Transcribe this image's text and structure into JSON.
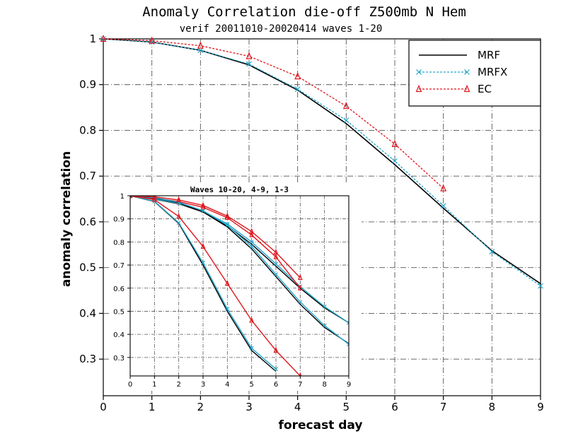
{
  "chart_data": [
    {
      "type": "line",
      "title": "Anomaly Correlation die-off   Z500mb N Hem",
      "subtitle": "verif 20011010-20020414 waves 1-20",
      "xlabel": "forecast day",
      "ylabel": "anomaly correlation",
      "xlim": [
        0,
        9
      ],
      "ylim": [
        0.22,
        1.0
      ],
      "xticks": [
        "0",
        "1",
        "2",
        "3",
        "4",
        "5",
        "6",
        "7",
        "8",
        "9"
      ],
      "yticks": [
        "0.3",
        "0.4",
        "0.5",
        "0.6",
        "0.7",
        "0.8",
        "0.9",
        "1"
      ],
      "grid": true,
      "legend_position": "top-right",
      "series": [
        {
          "name": "MRF",
          "color": "#000000",
          "x": [
            0,
            1,
            2,
            3,
            4,
            5,
            6,
            7,
            8,
            9
          ],
          "y": [
            1.0,
            0.993,
            0.975,
            0.943,
            0.888,
            0.815,
            0.725,
            0.63,
            0.537,
            0.465
          ]
        },
        {
          "name": "MRFX",
          "color": "#22a7cc",
          "x": [
            0,
            1,
            2,
            3,
            4,
            5,
            6,
            7,
            8,
            9
          ],
          "y": [
            1.0,
            0.993,
            0.975,
            0.945,
            0.89,
            0.822,
            0.733,
            0.635,
            0.535,
            0.46
          ]
        },
        {
          "name": "EC",
          "color": "#e0161d",
          "x": [
            0,
            1,
            2,
            3,
            4,
            5,
            6,
            7
          ],
          "y": [
            1.0,
            0.996,
            0.985,
            0.962,
            0.918,
            0.853,
            0.77,
            0.673
          ]
        }
      ]
    },
    {
      "type": "line",
      "title": "Waves 10-20, 4-9, 1-3",
      "xlim": [
        0,
        9
      ],
      "ylim": [
        0.22,
        1.0
      ],
      "xticks": [
        "0",
        "1",
        "2",
        "3",
        "4",
        "5",
        "6",
        "7",
        "8",
        "9"
      ],
      "yticks": [
        "0.3",
        "0.4",
        "0.5",
        "0.6",
        "0.7",
        "0.8",
        "0.9",
        "1"
      ],
      "grid": true,
      "groups": [
        {
          "label": "Waves 1-3",
          "series": [
            {
              "name": "MRF",
              "color": "#000000",
              "x": [
                0,
                1,
                2,
                3,
                4,
                5,
                6,
                7,
                8,
                9
              ],
              "y": [
                1.0,
                0.985,
                0.965,
                0.93,
                0.87,
                0.79,
                0.695,
                0.6,
                0.515,
                0.45
              ]
            },
            {
              "name": "MRFX",
              "color": "#22a7cc",
              "x": [
                0,
                1,
                2,
                3,
                4,
                5,
                6,
                7,
                8,
                9
              ],
              "y": [
                1.0,
                0.986,
                0.967,
                0.934,
                0.878,
                0.8,
                0.705,
                0.607,
                0.52,
                0.45
              ]
            },
            {
              "name": "EC",
              "color": "#e0161d",
              "x": [
                0,
                1,
                2,
                3,
                4,
                5,
                6,
                7
              ],
              "y": [
                1.0,
                0.99,
                0.975,
                0.95,
                0.905,
                0.83,
                0.735,
                0.6
              ]
            }
          ]
        },
        {
          "label": "Waves 4-9",
          "series": [
            {
              "name": "MRF",
              "color": "#000000",
              "x": [
                0,
                1,
                2,
                3,
                4,
                5,
                6,
                7,
                8,
                9
              ],
              "y": [
                1.0,
                0.991,
                0.97,
                0.93,
                0.865,
                0.77,
                0.65,
                0.53,
                0.43,
                0.36
              ]
            },
            {
              "name": "MRFX",
              "color": "#22a7cc",
              "x": [
                0,
                1,
                2,
                3,
                4,
                5,
                6,
                7,
                8,
                9
              ],
              "y": [
                1.0,
                0.992,
                0.972,
                0.935,
                0.872,
                0.78,
                0.66,
                0.54,
                0.438,
                0.357
              ]
            },
            {
              "name": "EC",
              "color": "#e0161d",
              "x": [
                0,
                1,
                2,
                3,
                4,
                5,
                6,
                7
              ],
              "y": [
                1.0,
                0.995,
                0.982,
                0.958,
                0.912,
                0.845,
                0.755,
                0.645
              ]
            }
          ]
        },
        {
          "label": "Waves 10-20",
          "series": [
            {
              "name": "MRF",
              "color": "#000000",
              "x": [
                0,
                1,
                2,
                3,
                4,
                5,
                6
              ],
              "y": [
                1.0,
                0.975,
                0.88,
                0.7,
                0.5,
                0.33,
                0.24
              ]
            },
            {
              "name": "MRFX",
              "color": "#22a7cc",
              "x": [
                0,
                1,
                2,
                3,
                4,
                5,
                6
              ],
              "y": [
                1.0,
                0.976,
                0.883,
                0.71,
                0.51,
                0.34,
                0.25
              ]
            },
            {
              "name": "EC",
              "color": "#e0161d",
              "x": [
                0,
                1,
                2,
                3,
                4,
                5,
                6,
                7
              ],
              "y": [
                1.0,
                0.983,
                0.91,
                0.78,
                0.62,
                0.46,
                0.33,
                0.22
              ]
            }
          ]
        }
      ]
    }
  ]
}
